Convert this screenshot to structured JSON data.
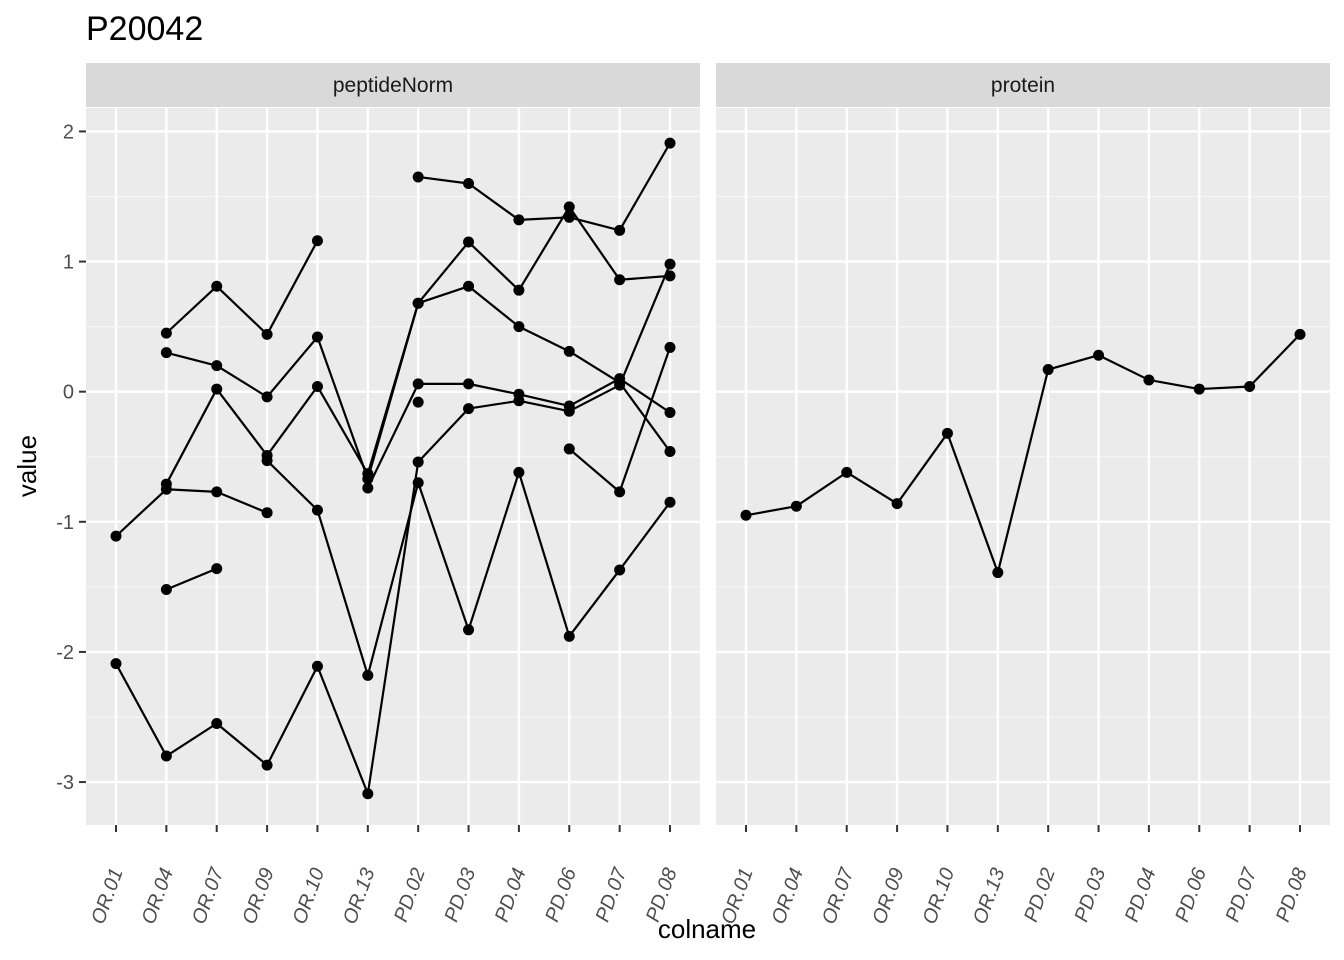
{
  "chart_data": {
    "type": "line",
    "title": "P20042",
    "xlabel": "colname",
    "ylabel": "value",
    "ylim": [
      -3.33,
      2.18
    ],
    "yticks": [
      -3,
      -2,
      -1,
      0,
      1,
      2
    ],
    "ytick_labels": [
      "-3",
      "-2",
      "-1",
      "0",
      "1",
      "2"
    ],
    "categories": [
      "OR.01",
      "OR.04",
      "OR.07",
      "OR.09",
      "OR.10",
      "OR.13",
      "PD.02",
      "PD.03",
      "PD.04",
      "PD.06",
      "PD.07",
      "PD.08"
    ],
    "panels": [
      {
        "label": "peptideNorm",
        "series": [
          {
            "values": [
              null,
              0.45,
              0.81,
              0.44,
              1.16,
              null,
              1.65,
              1.6,
              1.32,
              1.34,
              1.24,
              1.91
            ]
          },
          {
            "values": [
              null,
              0.3,
              0.2,
              -0.04,
              0.42,
              -0.67,
              0.68,
              0.81,
              0.5,
              0.31,
              0.07,
              -0.46
            ]
          },
          {
            "values": [
              null,
              -0.71,
              0.02,
              -0.49,
              0.04,
              -0.63,
              0.68,
              1.15,
              0.78,
              1.42,
              0.86,
              0.89
            ]
          },
          {
            "values": [
              -1.11,
              -0.75,
              -0.77,
              -0.93,
              null,
              -0.74,
              0.06,
              0.06,
              -0.02,
              -0.11,
              0.1,
              -0.16
            ]
          },
          {
            "values": [
              -2.09,
              -2.8,
              -2.55,
              -2.87,
              -2.11,
              -3.09,
              -0.54,
              -0.13,
              -0.07,
              -0.15,
              0.05,
              0.98
            ]
          },
          {
            "values": [
              null,
              null,
              null,
              -0.53,
              -0.91,
              -2.18,
              -0.7,
              -1.83,
              -0.62,
              -1.88,
              -1.37,
              -0.85
            ]
          },
          {
            "values": [
              null,
              -1.52,
              -1.36,
              null,
              null,
              null,
              -0.08,
              null,
              null,
              -0.44,
              -0.77,
              0.34
            ]
          }
        ]
      },
      {
        "label": "protein",
        "series": [
          {
            "values": [
              -0.95,
              -0.88,
              -0.62,
              -0.86,
              -0.32,
              -1.39,
              0.17,
              0.28,
              0.09,
              0.02,
              0.04,
              0.44
            ]
          }
        ]
      }
    ]
  }
}
